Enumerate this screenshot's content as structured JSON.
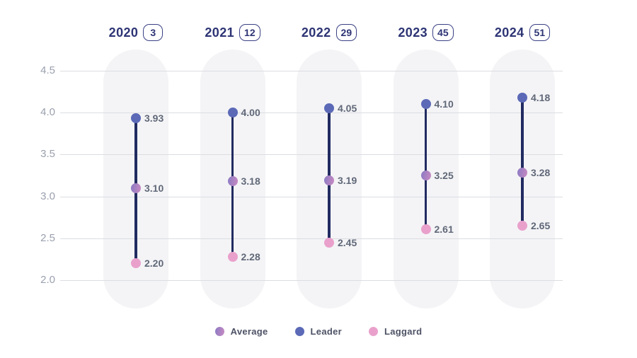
{
  "chart_data": {
    "type": "scatter",
    "variant": "dumbbell-range",
    "title": "",
    "xlabel": "",
    "ylabel": "",
    "categories": [
      "2020",
      "2021",
      "2022",
      "2023",
      "2024"
    ],
    "category_badges": [
      "3",
      "12",
      "29",
      "45",
      "51"
    ],
    "yticks": [
      "4.5",
      "4.0",
      "3.5",
      "3.0",
      "2.5",
      "2.0"
    ],
    "ylim": [
      2.0,
      4.5
    ],
    "grid": true,
    "legend_position": "bottom",
    "series": [
      {
        "name": "Leader",
        "values": [
          3.93,
          4.0,
          4.05,
          4.1,
          4.18
        ],
        "labels": [
          "3.93",
          "4.00",
          "4.05",
          "4.10",
          "4.18"
        ],
        "color": "#5b69b7",
        "color2": ""
      },
      {
        "name": "Average",
        "values": [
          3.1,
          3.18,
          3.19,
          3.25,
          3.28
        ],
        "labels": [
          "3.10",
          "3.18",
          "3.19",
          "3.25",
          "3.28"
        ],
        "color": "#8a7ac4",
        "color2": "#c98ac2"
      },
      {
        "name": "Laggard",
        "values": [
          2.2,
          2.28,
          2.45,
          2.61,
          2.65
        ],
        "labels": [
          "2.20",
          "2.28",
          "2.45",
          "2.61",
          "2.65"
        ],
        "color": "#e9a1cc",
        "color2": ""
      }
    ]
  },
  "legend": {
    "items": [
      {
        "label": "Average",
        "series": "Average"
      },
      {
        "label": "Leader",
        "series": "Leader"
      },
      {
        "label": "Laggard",
        "series": "Laggard"
      }
    ]
  },
  "colors": {
    "header_navy": "#2d3474",
    "range_line": "#222b61",
    "gridline": "#dcdde2",
    "pill_bg": "#f4f4f6",
    "ytick_text": "#9aa0ae",
    "value_text": "#606878",
    "legend_text": "#4d5265"
  }
}
